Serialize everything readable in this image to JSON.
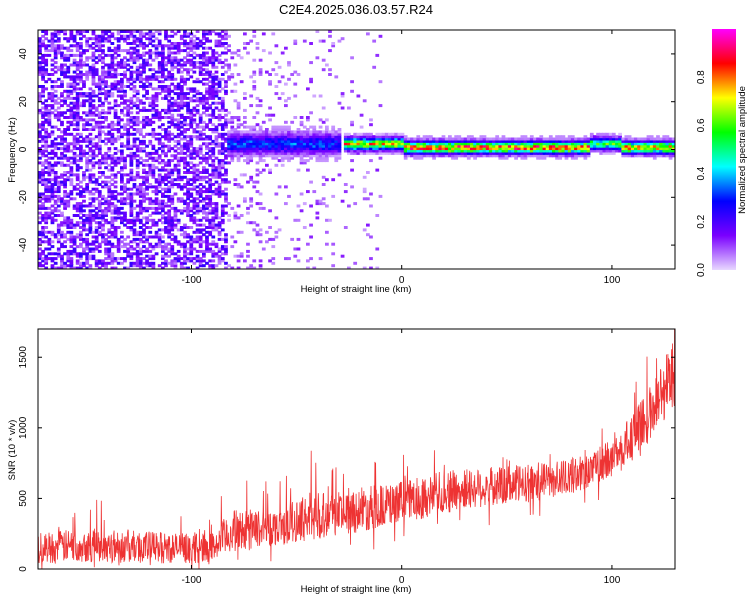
{
  "figure": {
    "title": "C2E4.2025.036.03.57.R24"
  },
  "chart_data": [
    {
      "type": "heatmap",
      "xlabel": "Height of straight line (km)",
      "ylabel": "Frequency (Hz)",
      "xlim": [
        -173,
        130
      ],
      "ylim": [
        -50,
        50
      ],
      "xticks": [
        -100,
        0,
        100
      ],
      "yticks": [
        -40,
        -20,
        0,
        20,
        40
      ],
      "colorbar": {
        "label": "Normalized spectral amplitude",
        "range": [
          0,
          1
        ],
        "ticks": [
          0.0,
          0.2,
          0.4,
          0.6,
          0.8
        ],
        "colormap": [
          "#e8d8ff",
          "#7a00ff",
          "#0000ff",
          "#00ffff",
          "#00ff00",
          "#ffff00",
          "#ff0000",
          "#ff00ff"
        ]
      },
      "ridge": {
        "description_units": "Hz vs km",
        "segments": [
          {
            "x": [
              -83,
              -30
            ],
            "y": 2,
            "amplitude": 0.3
          },
          {
            "x": [
              -28,
              0
            ],
            "y": 2,
            "amplitude": 0.7
          },
          {
            "x": [
              0,
              88
            ],
            "y": 0.5,
            "amplitude": 0.8
          },
          {
            "x": [
              88,
              103
            ],
            "y": 2,
            "amplitude": 0.55
          },
          {
            "x": [
              103,
              130
            ],
            "y": 0.5,
            "amplitude": 0.75
          }
        ],
        "broadband_noise_below_x": -83
      }
    },
    {
      "type": "line",
      "xlabel": "Height of straight line (km)",
      "ylabel": "SNR (10 * v/v)",
      "xlim": [
        -173,
        130
      ],
      "ylim": [
        0,
        1700
      ],
      "xticks": [
        -100,
        0,
        100
      ],
      "yticks": [
        0,
        500,
        1000,
        1500
      ],
      "color": "#ee3333",
      "envelope": {
        "x": [
          -173,
          -150,
          -120,
          -100,
          -90,
          -85,
          -80,
          -60,
          -40,
          -20,
          0,
          20,
          40,
          60,
          80,
          90,
          100,
          110,
          120,
          130
        ],
        "lower": [
          40,
          50,
          40,
          40,
          50,
          80,
          120,
          170,
          210,
          260,
          320,
          390,
          440,
          470,
          530,
          580,
          640,
          760,
          950,
          1150
        ],
        "upper": [
          260,
          290,
          270,
          250,
          260,
          350,
          420,
          420,
          560,
          580,
          620,
          700,
          720,
          740,
          780,
          830,
          920,
          1100,
          1350,
          1680
        ]
      }
    }
  ]
}
